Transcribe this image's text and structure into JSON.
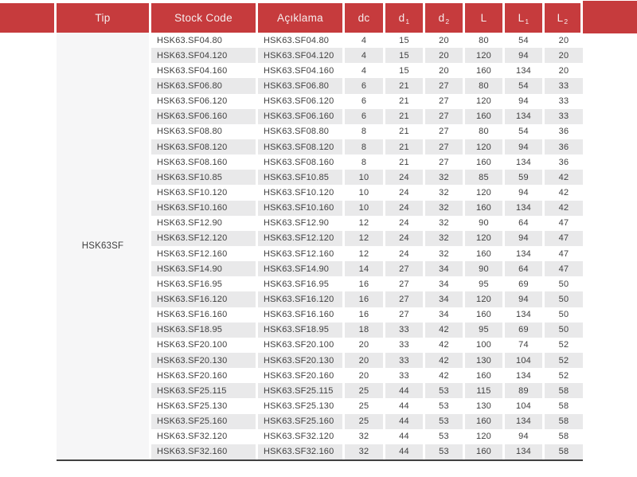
{
  "colors": {
    "header_red": "#c63b3d",
    "header_text": "#f6eded",
    "row_stripe": "#e9e9ea",
    "tip_cell_bg": "#f6f6f7",
    "body_text": "#3f3f3f",
    "bottom_rule": "#414141"
  },
  "header": [
    {
      "label": "Tip",
      "sub": ""
    },
    {
      "label": "Stock Code",
      "sub": ""
    },
    {
      "label": "Açıklama",
      "sub": ""
    },
    {
      "label": "dc",
      "sub": ""
    },
    {
      "label": "d",
      "sub": "1"
    },
    {
      "label": "d",
      "sub": "2"
    },
    {
      "label": "L",
      "sub": ""
    },
    {
      "label": "L",
      "sub": "1"
    },
    {
      "label": "L",
      "sub": "2"
    }
  ],
  "tip_group": "HSK63SF",
  "rows": [
    {
      "stock_code": "HSK63.SF04.80",
      "aciklama": "HSK63.SF04.80",
      "dc": "4",
      "d1": "15",
      "d2": "20",
      "L": "80",
      "L1": "54",
      "L2": "20"
    },
    {
      "stock_code": "HSK63.SF04.120",
      "aciklama": "HSK63.SF04.120",
      "dc": "4",
      "d1": "15",
      "d2": "20",
      "L": "120",
      "L1": "94",
      "L2": "20"
    },
    {
      "stock_code": "HSK63.SF04.160",
      "aciklama": "HSK63.SF04.160",
      "dc": "4",
      "d1": "15",
      "d2": "20",
      "L": "160",
      "L1": "134",
      "L2": "20"
    },
    {
      "stock_code": "HSK63.SF06.80",
      "aciklama": "HSK63.SF06.80",
      "dc": "6",
      "d1": "21",
      "d2": "27",
      "L": "80",
      "L1": "54",
      "L2": "33"
    },
    {
      "stock_code": "HSK63.SF06.120",
      "aciklama": "HSK63.SF06.120",
      "dc": "6",
      "d1": "21",
      "d2": "27",
      "L": "120",
      "L1": "94",
      "L2": "33"
    },
    {
      "stock_code": "HSK63.SF06.160",
      "aciklama": "HSK63.SF06.160",
      "dc": "6",
      "d1": "21",
      "d2": "27",
      "L": "160",
      "L1": "134",
      "L2": "33"
    },
    {
      "stock_code": "HSK63.SF08.80",
      "aciklama": "HSK63.SF08.80",
      "dc": "8",
      "d1": "21",
      "d2": "27",
      "L": "80",
      "L1": "54",
      "L2": "36"
    },
    {
      "stock_code": "HSK63.SF08.120",
      "aciklama": "HSK63.SF08.120",
      "dc": "8",
      "d1": "21",
      "d2": "27",
      "L": "120",
      "L1": "94",
      "L2": "36"
    },
    {
      "stock_code": "HSK63.SF08.160",
      "aciklama": "HSK63.SF08.160",
      "dc": "8",
      "d1": "21",
      "d2": "27",
      "L": "160",
      "L1": "134",
      "L2": "36"
    },
    {
      "stock_code": "HSK63.SF10.85",
      "aciklama": "HSK63.SF10.85",
      "dc": "10",
      "d1": "24",
      "d2": "32",
      "L": "85",
      "L1": "59",
      "L2": "42"
    },
    {
      "stock_code": "HSK63.SF10.120",
      "aciklama": "HSK63.SF10.120",
      "dc": "10",
      "d1": "24",
      "d2": "32",
      "L": "120",
      "L1": "94",
      "L2": "42"
    },
    {
      "stock_code": "HSK63.SF10.160",
      "aciklama": "HSK63.SF10.160",
      "dc": "10",
      "d1": "24",
      "d2": "32",
      "L": "160",
      "L1": "134",
      "L2": "42"
    },
    {
      "stock_code": "HSK63.SF12.90",
      "aciklama": "HSK63.SF12.90",
      "dc": "12",
      "d1": "24",
      "d2": "32",
      "L": "90",
      "L1": "64",
      "L2": "47"
    },
    {
      "stock_code": "HSK63.SF12.120",
      "aciklama": "HSK63.SF12.120",
      "dc": "12",
      "d1": "24",
      "d2": "32",
      "L": "120",
      "L1": "94",
      "L2": "47"
    },
    {
      "stock_code": "HSK63.SF12.160",
      "aciklama": "HSK63.SF12.160",
      "dc": "12",
      "d1": "24",
      "d2": "32",
      "L": "160",
      "L1": "134",
      "L2": "47"
    },
    {
      "stock_code": "HSK63.SF14.90",
      "aciklama": "HSK63.SF14.90",
      "dc": "14",
      "d1": "27",
      "d2": "34",
      "L": "90",
      "L1": "64",
      "L2": "47"
    },
    {
      "stock_code": "HSK63.SF16.95",
      "aciklama": "HSK63.SF16.95",
      "dc": "16",
      "d1": "27",
      "d2": "34",
      "L": "95",
      "L1": "69",
      "L2": "50"
    },
    {
      "stock_code": "HSK63.SF16.120",
      "aciklama": "HSK63.SF16.120",
      "dc": "16",
      "d1": "27",
      "d2": "34",
      "L": "120",
      "L1": "94",
      "L2": "50"
    },
    {
      "stock_code": "HSK63.SF16.160",
      "aciklama": "HSK63.SF16.160",
      "dc": "16",
      "d1": "27",
      "d2": "34",
      "L": "160",
      "L1": "134",
      "L2": "50"
    },
    {
      "stock_code": "HSK63.SF18.95",
      "aciklama": "HSK63.SF18.95",
      "dc": "18",
      "d1": "33",
      "d2": "42",
      "L": "95",
      "L1": "69",
      "L2": "50"
    },
    {
      "stock_code": "HSK63.SF20.100",
      "aciklama": "HSK63.SF20.100",
      "dc": "20",
      "d1": "33",
      "d2": "42",
      "L": "100",
      "L1": "74",
      "L2": "52"
    },
    {
      "stock_code": "HSK63.SF20.130",
      "aciklama": "HSK63.SF20.130",
      "dc": "20",
      "d1": "33",
      "d2": "42",
      "L": "130",
      "L1": "104",
      "L2": "52"
    },
    {
      "stock_code": "HSK63.SF20.160",
      "aciklama": "HSK63.SF20.160",
      "dc": "20",
      "d1": "33",
      "d2": "42",
      "L": "160",
      "L1": "134",
      "L2": "52"
    },
    {
      "stock_code": "HSK63.SF25.115",
      "aciklama": "HSK63.SF25.115",
      "dc": "25",
      "d1": "44",
      "d2": "53",
      "L": "115",
      "L1": "89",
      "L2": "58"
    },
    {
      "stock_code": "HSK63.SF25.130",
      "aciklama": "HSK63.SF25.130",
      "dc": "25",
      "d1": "44",
      "d2": "53",
      "L": "130",
      "L1": "104",
      "L2": "58"
    },
    {
      "stock_code": "HSK63.SF25.160",
      "aciklama": "HSK63.SF25.160",
      "dc": "25",
      "d1": "44",
      "d2": "53",
      "L": "160",
      "L1": "134",
      "L2": "58"
    },
    {
      "stock_code": "HSK63.SF32.120",
      "aciklama": "HSK63.SF32.120",
      "dc": "32",
      "d1": "44",
      "d2": "53",
      "L": "120",
      "L1": "94",
      "L2": "58"
    },
    {
      "stock_code": "HSK63.SF32.160",
      "aciklama": "HSK63.SF32.160",
      "dc": "32",
      "d1": "44",
      "d2": "53",
      "L": "160",
      "L1": "134",
      "L2": "58"
    }
  ]
}
